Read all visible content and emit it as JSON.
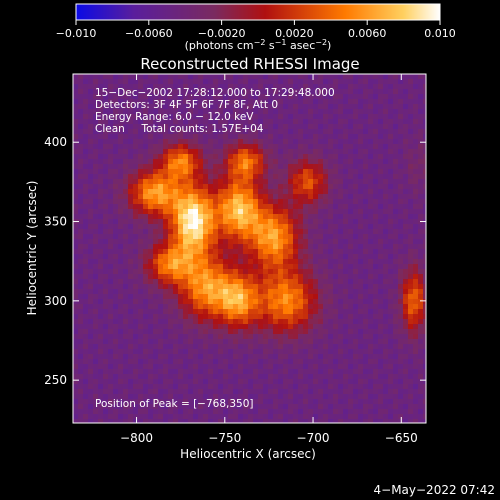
{
  "chart_data": {
    "type": "heatmap",
    "title": "Reconstructed RHESSI Image",
    "xlabel": "Heliocentric X (arcsec)",
    "ylabel": "Heliocentric Y (arcsec)",
    "xlim": [
      -836,
      -636
    ],
    "ylim": [
      223,
      443
    ],
    "x_ticks": [
      -800,
      -750,
      -700,
      -650
    ],
    "x_tick_labels": [
      "−800",
      "−750",
      "−700",
      "−650"
    ],
    "y_ticks": [
      250,
      300,
      350,
      400
    ],
    "y_tick_labels": [
      "250",
      "300",
      "350",
      "400"
    ],
    "colorbar": {
      "range": [
        -0.01,
        0.01
      ],
      "ticks": [
        -0.01,
        -0.006,
        -0.002,
        0.002,
        0.006,
        0.01
      ],
      "tick_labels": [
        "−0.010",
        "−0.0060",
        "−0.0020",
        "0.0020",
        "0.0060",
        "0.010"
      ],
      "label_parts": [
        "(photons cm",
        "−2",
        " s",
        "−1",
        " asec",
        "−2",
        ")"
      ],
      "stops": [
        "#0a0ae6",
        "#5a1e9c",
        "#7a2a60",
        "#b01010",
        "#ff7a00",
        "#ffd060",
        "#ffffff"
      ]
    },
    "annotations": [
      "15−Dec−2002 17:28:12.000 to 17:29:48.000",
      "Detectors: 3F 4F 5F 6F 7F 8F, Att 0",
      "Energy Range: 6.0 − 12.0 keV",
      "Clean     Total counts: 1.57E+04"
    ],
    "peak_label": "Position of Peak = [−768,350]",
    "peak": [
      -768,
      350
    ],
    "sources": [
      {
        "x": -768,
        "y": 350,
        "intensity": 0.0098,
        "sx": 9,
        "sy": 16
      },
      {
        "x": -790,
        "y": 368,
        "intensity": 0.006,
        "sx": 10,
        "sy": 10
      },
      {
        "x": -742,
        "y": 358,
        "intensity": 0.0072,
        "sx": 9,
        "sy": 14
      },
      {
        "x": -722,
        "y": 340,
        "intensity": 0.006,
        "sx": 10,
        "sy": 14
      },
      {
        "x": -715,
        "y": 300,
        "intensity": 0.0052,
        "sx": 12,
        "sy": 14
      },
      {
        "x": -760,
        "y": 308,
        "intensity": 0.0056,
        "sx": 11,
        "sy": 14
      },
      {
        "x": -742,
        "y": 300,
        "intensity": 0.0046,
        "sx": 8,
        "sy": 12
      },
      {
        "x": -782,
        "y": 323,
        "intensity": 0.004,
        "sx": 9,
        "sy": 9
      },
      {
        "x": -775,
        "y": 388,
        "intensity": 0.0044,
        "sx": 8,
        "sy": 8
      },
      {
        "x": -738,
        "y": 388,
        "intensity": 0.004,
        "sx": 8,
        "sy": 8
      },
      {
        "x": -703,
        "y": 375,
        "intensity": 0.003,
        "sx": 8,
        "sy": 10
      },
      {
        "x": -643,
        "y": 300,
        "intensity": 0.004,
        "sx": 5,
        "sy": 14
      },
      {
        "x": -640,
        "y": 385,
        "intensity": -0.003,
        "sx": 6,
        "sy": 12
      }
    ],
    "background": -0.0045
  },
  "footer": {
    "timestamp": "4−May−2022 07:42"
  }
}
